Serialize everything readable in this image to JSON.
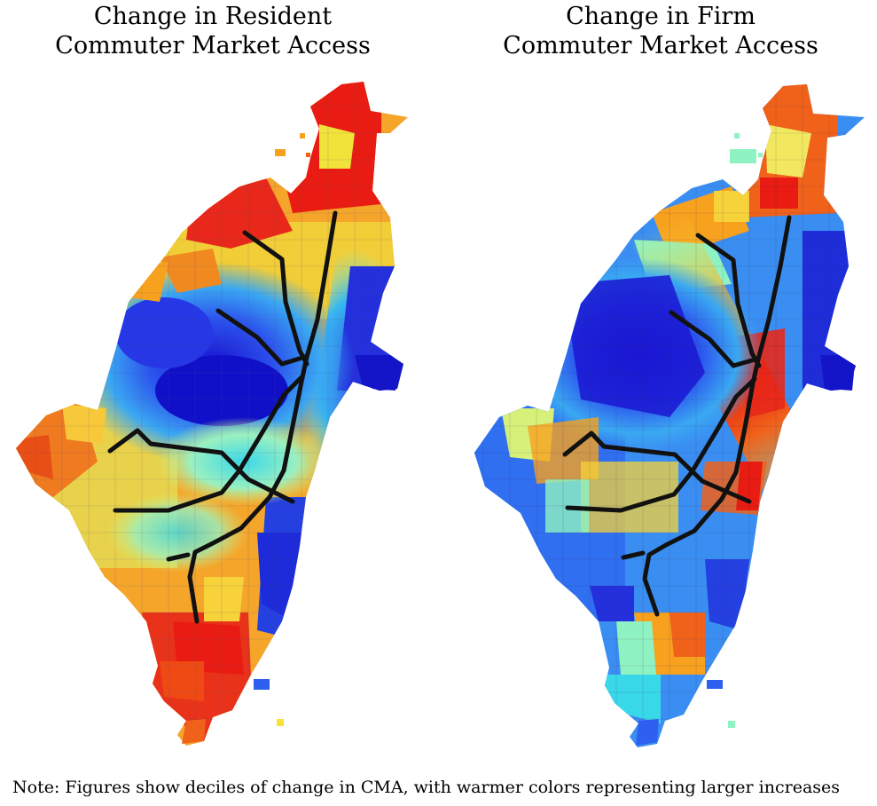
{
  "figure": {
    "left_panel": {
      "title_line1": "Change in Resident",
      "title_line2": "Commuter Market Access",
      "dominant_cold_zone": "west-center",
      "warm_zones": [
        "north",
        "far-west",
        "south-tail"
      ]
    },
    "right_panel": {
      "title_line1": "Change in Firm",
      "title_line2": "Commuter Market Access",
      "dominant_cold_zone": "west and east edges",
      "warm_zones": [
        "north",
        "along transit lines",
        "south-center"
      ]
    },
    "note": "Note: Figures show deciles of change in CMA, with warmer colors representing larger increases"
  },
  "colors": {
    "decile_scale": [
      "#1f1fd6",
      "#2f5ff0",
      "#2f9cf5",
      "#39d8e8",
      "#8ff2c2",
      "#d6f07a",
      "#f7e13a",
      "#f7a11f",
      "#f0621a",
      "#e81c12"
    ],
    "transit_line": "#111111",
    "background": "#ffffff"
  }
}
